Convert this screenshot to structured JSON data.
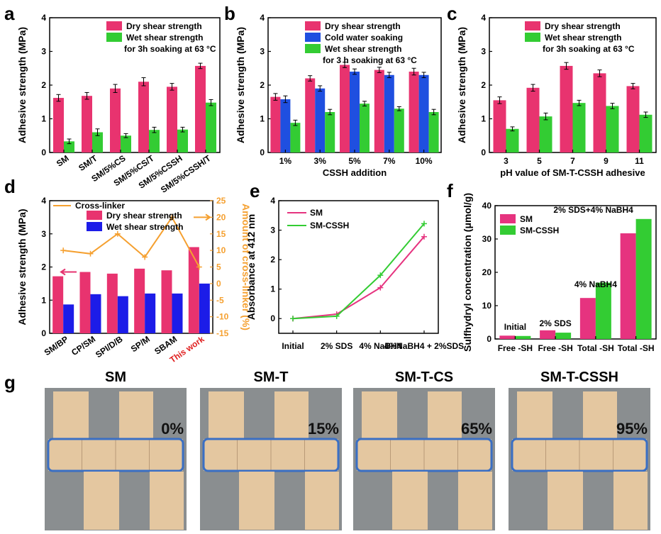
{
  "colors": {
    "dry": "#e8336f",
    "wet": "#33cc33",
    "cold": "#1f4fe0",
    "blue": "#1c1ce8",
    "orange": "#f5a030",
    "pink": "#e6337f",
    "green": "#33cc33",
    "photo_bg": "#8a8e90",
    "wood": "#e4c7a0",
    "box": "#3a6fc4"
  },
  "panels": {
    "a": "a",
    "b": "b",
    "c": "c",
    "d": "d",
    "e": "e",
    "f": "f",
    "g": "g"
  },
  "chart_data": [
    {
      "id": "a",
      "type": "bar",
      "ylabel": "Adhesive strength (MPa)",
      "ylim": [
        0,
        4
      ],
      "yticks": [
        "0",
        "1",
        "2",
        "3",
        "4"
      ],
      "categories": [
        "SM",
        "SM/T",
        "SM/5%CS",
        "SM/5%CS/T",
        "SM/5%CSSH",
        "SM/5%CSSH/T"
      ],
      "series": [
        {
          "name": "Dry shear strength",
          "color": "#e8336f",
          "values": [
            1.62,
            1.68,
            1.9,
            2.1,
            1.95,
            2.57
          ],
          "err": [
            0.1,
            0.1,
            0.12,
            0.12,
            0.1,
            0.08
          ]
        },
        {
          "name": "Wet shear strength",
          "color": "#33cc33",
          "values": [
            0.33,
            0.6,
            0.5,
            0.67,
            0.68,
            1.48
          ],
          "err": [
            0.07,
            0.1,
            0.06,
            0.08,
            0.07,
            0.09
          ]
        }
      ],
      "legend_note": "for 3h soaking at 63 °C"
    },
    {
      "id": "b",
      "type": "bar",
      "ylabel": "Adhesive strength (MPa)",
      "xlabel": "CSSH addition",
      "ylim": [
        0,
        4
      ],
      "yticks": [
        "0",
        "1",
        "2",
        "3",
        "4"
      ],
      "categories": [
        "1%",
        "3%",
        "5%",
        "7%",
        "10%"
      ],
      "series": [
        {
          "name": "Dry shear strength",
          "color": "#e8336f",
          "values": [
            1.65,
            2.2,
            2.6,
            2.45,
            2.4
          ],
          "err": [
            0.1,
            0.08,
            0.08,
            0.08,
            0.1
          ]
        },
        {
          "name": "Cold water soaking",
          "color": "#1f4fe0",
          "values": [
            1.58,
            1.9,
            2.4,
            2.3,
            2.3
          ],
          "err": [
            0.1,
            0.08,
            0.08,
            0.08,
            0.08
          ]
        },
        {
          "name": "Wet shear strength",
          "color": "#33cc33",
          "values": [
            0.88,
            1.2,
            1.45,
            1.3,
            1.2
          ],
          "err": [
            0.08,
            0.08,
            0.07,
            0.06,
            0.08
          ]
        }
      ],
      "legend_note": "for 3 h soaking at 63 °C"
    },
    {
      "id": "c",
      "type": "bar",
      "ylabel": "Adhesive strength (MPa)",
      "xlabel": "pH value of SM-T-CSSH adhesive",
      "ylim": [
        0,
        4
      ],
      "yticks": [
        "0",
        "1",
        "2",
        "3",
        "4"
      ],
      "categories": [
        "3",
        "5",
        "7",
        "9",
        "11"
      ],
      "series": [
        {
          "name": "Dry shear strength",
          "color": "#e8336f",
          "values": [
            1.55,
            1.92,
            2.57,
            2.35,
            1.97
          ],
          "err": [
            0.1,
            0.1,
            0.1,
            0.1,
            0.08
          ]
        },
        {
          "name": "Wet shear strength",
          "color": "#33cc33",
          "values": [
            0.7,
            1.07,
            1.47,
            1.38,
            1.12
          ],
          "err": [
            0.06,
            0.1,
            0.08,
            0.08,
            0.08
          ]
        }
      ],
      "legend_note": "for 3h soaking at 63 °C"
    },
    {
      "id": "d",
      "type": "bar",
      "ylabel": "Adhesive strength (MPa)",
      "y2label": "Amount of cross-linker (%)",
      "ylim": [
        0,
        4
      ],
      "y2lim": [
        -15,
        25
      ],
      "yticks": [
        "0",
        "1",
        "2",
        "3",
        "4"
      ],
      "y2ticks": [
        "-15",
        "-10",
        "-5",
        "0",
        "5",
        "10",
        "15",
        "20",
        "25"
      ],
      "categories": [
        "SM/BP",
        "CP/SM",
        "SPI/D/B",
        "SP/M",
        "SBAM",
        "This work"
      ],
      "highlight": "This work",
      "series": [
        {
          "name": "Dry shear strength",
          "color": "#e8336f",
          "values": [
            1.72,
            1.85,
            1.8,
            1.95,
            1.9,
            2.6
          ]
        },
        {
          "name": "Wet shear strength",
          "color": "#1c1ce8",
          "values": [
            0.87,
            1.18,
            1.12,
            1.2,
            1.2,
            1.5
          ]
        }
      ],
      "line": {
        "name": "Cross-linker",
        "color": "#f5a030",
        "values": [
          10,
          9,
          15,
          8,
          20,
          5
        ]
      }
    },
    {
      "id": "e",
      "type": "line",
      "ylabel": "Absorbance at 412 nm",
      "ylim": [
        0,
        4
      ],
      "yticks": [
        "0",
        "1",
        "2",
        "3",
        "4"
      ],
      "categories": [
        "Initial",
        "2% SDS",
        "4% NaBH4",
        "4%NaBH4 + 2%SDS"
      ],
      "series": [
        {
          "name": "SM",
          "color": "#e6337f",
          "values": [
            0.0,
            0.15,
            1.05,
            2.78
          ]
        },
        {
          "name": "SM-CSSH",
          "color": "#33cc33",
          "values": [
            0.0,
            0.08,
            1.47,
            3.22
          ]
        }
      ]
    },
    {
      "id": "f",
      "type": "bar",
      "ylabel": "Sulfhydryl concentration (μmol/g)",
      "ylim": [
        0,
        40
      ],
      "yticks": [
        "0",
        "10",
        "20",
        "30",
        "40"
      ],
      "categories": [
        "Free -SH",
        "Free -SH",
        "Total -SH",
        "Total -SH"
      ],
      "group_labels": [
        "Initial",
        "2% SDS",
        "4% NaBH4",
        "2% SDS+4% NaBH4"
      ],
      "series": [
        {
          "name": "SM",
          "color": "#e6337f",
          "values": [
            1.0,
            2.6,
            12.3,
            31.7
          ]
        },
        {
          "name": "SM-CSSH",
          "color": "#33cc33",
          "values": [
            0.9,
            1.9,
            16.9,
            36.0
          ]
        }
      ]
    }
  ],
  "photos": [
    {
      "title": "SM",
      "percent": "0%"
    },
    {
      "title": "SM-T",
      "percent": "15%"
    },
    {
      "title": "SM-T-CS",
      "percent": "65%"
    },
    {
      "title": "SM-T-CSSH",
      "percent": "95%"
    }
  ]
}
